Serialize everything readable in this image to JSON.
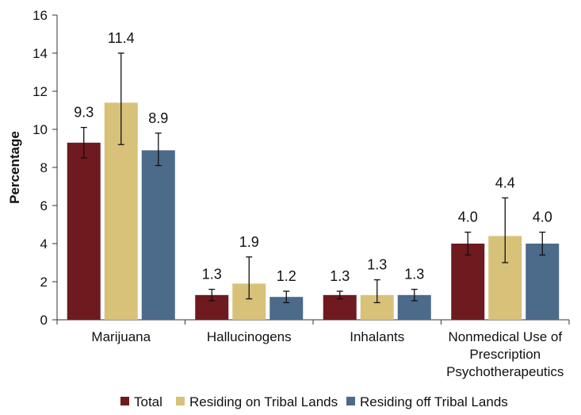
{
  "chart_data": {
    "type": "bar",
    "title": "",
    "xlabel": "",
    "ylabel": "Percentage",
    "ylim": [
      0,
      16
    ],
    "yticks": [
      0,
      2,
      4,
      6,
      8,
      10,
      12,
      14,
      16
    ],
    "grid": false,
    "legend_position": "bottom",
    "categories": [
      [
        "Marijuana"
      ],
      [
        "Hallucinogens"
      ],
      [
        "Inhalants"
      ],
      [
        "Nonmedical Use of",
        "Prescription",
        "Psychotherapeutics"
      ]
    ],
    "series": [
      {
        "name": "Total",
        "color": "#6e1a1e",
        "values": [
          9.3,
          1.3,
          1.3,
          4.0
        ],
        "labels": [
          "9.3",
          "1.3",
          "1.3",
          "4.0"
        ],
        "error_low": [
          8.5,
          1.0,
          1.1,
          3.4
        ],
        "error_high": [
          10.1,
          1.6,
          1.5,
          4.6
        ]
      },
      {
        "name": "Residing on Tribal Lands",
        "color": "#d8c27a",
        "values": [
          11.4,
          1.9,
          1.3,
          4.4
        ],
        "labels": [
          "11.4",
          "1.9",
          "1.3",
          "4.4"
        ],
        "error_low": [
          9.2,
          1.1,
          0.9,
          3.0
        ],
        "error_high": [
          14.0,
          3.3,
          2.1,
          6.4
        ]
      },
      {
        "name": "Residing off Tribal Lands",
        "color": "#4c6a8a",
        "values": [
          8.9,
          1.2,
          1.3,
          4.0
        ],
        "labels": [
          "8.9",
          "1.2",
          "1.3",
          "4.0"
        ],
        "error_low": [
          8.1,
          0.9,
          1.0,
          3.4
        ],
        "error_high": [
          9.8,
          1.5,
          1.6,
          4.6
        ]
      }
    ]
  }
}
